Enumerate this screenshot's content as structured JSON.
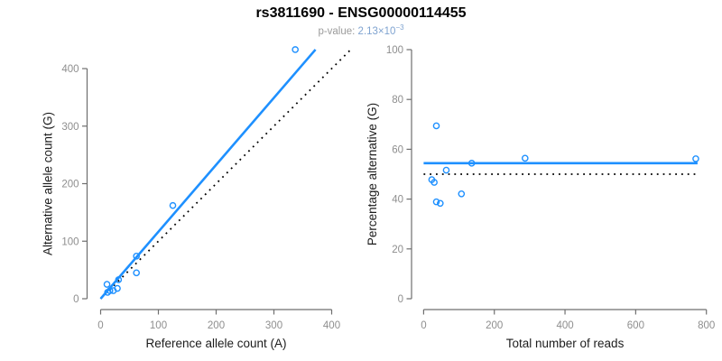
{
  "figure": {
    "title": "rs3811690 - ENSG00000114455",
    "subtitle_label": "p-value: ",
    "p_value_mantissa": "2.13×10",
    "p_value_exponent": "−3"
  },
  "colors": {
    "accent_blue": "#1E90FF",
    "identity_line": "#000000",
    "axis_line": "#6f6f6f",
    "tick_label": "#8e8e8e",
    "axis_title": "#1c1c1c",
    "title_text": "#000000",
    "subtitle_text": "#9b9b9b",
    "p_value_text": "#7fa3d0"
  },
  "chart_data": [
    {
      "type": "scatter",
      "name": "allele-counts-panel",
      "xlabel": "Reference allele count (A)",
      "ylabel": "Alternative allele count (G)",
      "xlim": [
        0,
        433
      ],
      "ylim": [
        0,
        433
      ],
      "xticks": [
        0,
        100,
        200,
        300,
        400
      ],
      "yticks": [
        0,
        100,
        200,
        300,
        400
      ],
      "grid": false,
      "legend": null,
      "points": [
        [
          11,
          25
        ],
        [
          12,
          11
        ],
        [
          16,
          14
        ],
        [
          22,
          14
        ],
        [
          29,
          18
        ],
        [
          31,
          33
        ],
        [
          62,
          45
        ],
        [
          62,
          74
        ],
        [
          125,
          162
        ],
        [
          337,
          433
        ]
      ],
      "lines": [
        {
          "name": "identity",
          "style": "dotted",
          "color_key": "identity_line",
          "x1": 0,
          "y1": 0,
          "x2": 432,
          "y2": 432
        },
        {
          "name": "regression-fit",
          "style": "solid",
          "color_key": "accent_blue",
          "x1": 0,
          "y1": 0,
          "x2": 372,
          "y2": 433
        }
      ]
    },
    {
      "type": "scatter",
      "name": "percentage-alternative-panel",
      "xlabel": "Total number of reads",
      "ylabel": "Percentage alternative (G)",
      "xlim": [
        0,
        800
      ],
      "ylim": [
        0,
        100
      ],
      "xticks": [
        0,
        200,
        400,
        600,
        800
      ],
      "yticks": [
        0,
        20,
        40,
        60,
        80,
        100
      ],
      "grid": false,
      "legend": null,
      "points": [
        [
          36,
          69.4
        ],
        [
          23,
          47.8
        ],
        [
          30,
          46.7
        ],
        [
          36,
          38.9
        ],
        [
          47,
          38.3
        ],
        [
          64,
          51.6
        ],
        [
          107,
          42.1
        ],
        [
          136,
          54.4
        ],
        [
          287,
          56.4
        ],
        [
          770,
          56.2
        ]
      ],
      "lines": [
        {
          "name": "null-50-percent",
          "style": "dotted",
          "color_key": "identity_line",
          "x1": 0,
          "y1": 50,
          "x2": 770,
          "y2": 50
        },
        {
          "name": "mean-percentage",
          "style": "solid",
          "color_key": "accent_blue",
          "x1": 0,
          "y1": 54.4,
          "x2": 775,
          "y2": 54.4
        }
      ]
    }
  ]
}
